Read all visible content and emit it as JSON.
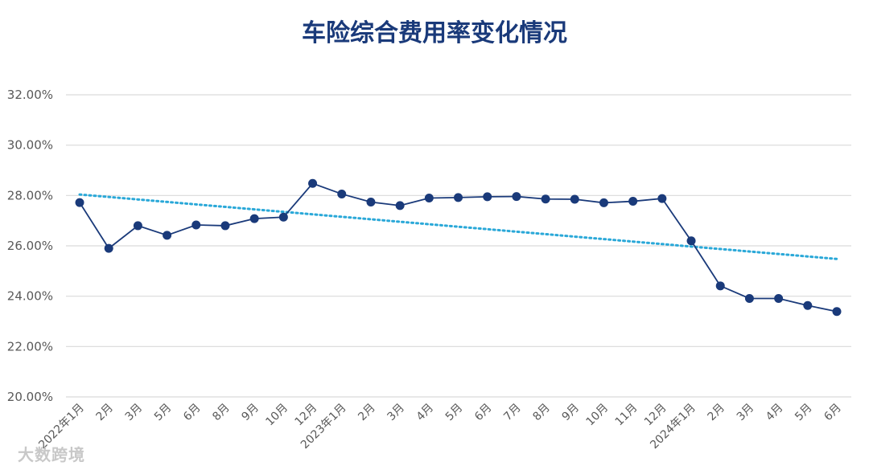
{
  "chart_data": {
    "type": "line",
    "title": "车险综合费用率变化情况",
    "xlabel": "",
    "ylabel": "",
    "ylim": [
      0.2,
      0.32
    ],
    "y_ticks": [
      "20.00%",
      "22.00%",
      "24.00%",
      "26.00%",
      "28.00%",
      "30.00%",
      "32.00%"
    ],
    "grid": true,
    "categories": [
      "2022年1月",
      "2月",
      "3月",
      "5月",
      "6月",
      "8月",
      "9月",
      "10月",
      "12月",
      "2023年1月",
      "2月",
      "3月",
      "4月",
      "5月",
      "6月",
      "7月",
      "8月",
      "9月",
      "10月",
      "11月",
      "12月",
      "2024年1月",
      "2月",
      "3月",
      "4月",
      "5月",
      "6月"
    ],
    "series": [
      {
        "values": [
          0.2772,
          0.259,
          0.268,
          0.2642,
          0.2683,
          0.268,
          0.2708,
          0.2714,
          0.2848,
          0.2806,
          0.2774,
          0.276,
          0.279,
          0.2792,
          0.2795,
          0.2796,
          0.2786,
          0.2785,
          0.2771,
          0.2777,
          0.2788,
          0.262,
          0.2441,
          0.2391,
          0.2391,
          0.2363,
          0.2339
        ],
        "color": "#1a3a7a"
      }
    ],
    "trendline": {
      "style": "dotted",
      "color": "#2aa8d8",
      "start": 0.2804,
      "end": 0.2548
    }
  },
  "watermark": "大数跨境"
}
